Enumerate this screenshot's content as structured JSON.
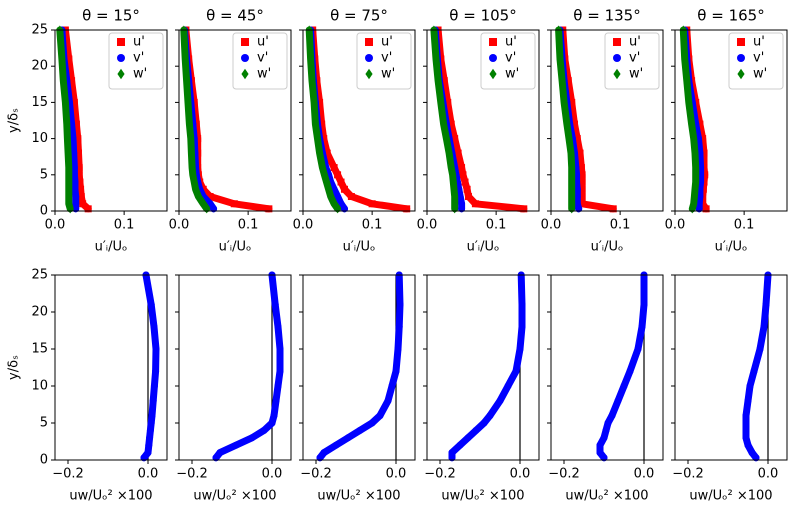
{
  "chart_data": [
    {
      "type": "scatter",
      "title": "θ = 15°",
      "xlabel": "u′ᵢ/Uₒ",
      "ylabel": "y/δₛ",
      "xlim": [
        0,
        0.162
      ],
      "ylim": [
        0,
        25
      ],
      "xticks": [
        {
          "value": 0,
          "label": "0.0"
        },
        {
          "value": 0.1,
          "label": "0.1"
        }
      ],
      "yticks": [
        0,
        5,
        10,
        15,
        20,
        25
      ],
      "y": [
        0.3,
        1,
        2,
        3,
        4,
        5,
        6,
        8,
        10,
        12,
        15,
        18,
        21,
        25
      ],
      "series": [
        {
          "name": "u'",
          "color": "#ff0000",
          "marker": "square",
          "values": [
            0.048,
            0.04,
            0.038,
            0.037,
            0.036,
            0.035,
            0.035,
            0.034,
            0.033,
            0.031,
            0.028,
            0.024,
            0.02,
            0.015
          ]
        },
        {
          "name": "v'",
          "color": "#0000ff",
          "marker": "circle",
          "values": [
            0.03,
            0.03,
            0.03,
            0.029,
            0.029,
            0.028,
            0.028,
            0.027,
            0.026,
            0.024,
            0.021,
            0.017,
            0.013,
            0.01
          ]
        },
        {
          "name": "w'",
          "color": "#008000",
          "marker": "diamond",
          "values": [
            0.022,
            0.02,
            0.02,
            0.02,
            0.02,
            0.02,
            0.02,
            0.019,
            0.018,
            0.017,
            0.015,
            0.012,
            0.01,
            0.007
          ]
        }
      ]
    },
    {
      "type": "scatter",
      "title": "θ = 45°",
      "xlabel": "u′ᵢ/Uₒ",
      "xlim": [
        0,
        0.162
      ],
      "ylim": [
        0,
        25
      ],
      "xticks": [
        {
          "value": 0,
          "label": "0.0"
        },
        {
          "value": 0.1,
          "label": "0.1"
        }
      ],
      "yticks": [
        0,
        5,
        10,
        15,
        20,
        25
      ],
      "y": [
        0.3,
        1,
        2,
        3,
        4,
        5,
        6,
        8,
        10,
        12,
        15,
        18,
        21,
        25
      ],
      "series": [
        {
          "name": "u'",
          "color": "#ff0000",
          "marker": "square",
          "values": [
            0.13,
            0.08,
            0.045,
            0.035,
            0.03,
            0.028,
            0.027,
            0.027,
            0.027,
            0.025,
            0.022,
            0.018,
            0.014,
            0.01
          ]
        },
        {
          "name": "v'",
          "color": "#0000ff",
          "marker": "circle",
          "values": [
            0.05,
            0.045,
            0.035,
            0.03,
            0.027,
            0.025,
            0.024,
            0.023,
            0.022,
            0.02,
            0.017,
            0.014,
            0.011,
            0.008
          ]
        },
        {
          "name": "w'",
          "color": "#008000",
          "marker": "diamond",
          "values": [
            0.04,
            0.035,
            0.028,
            0.024,
            0.022,
            0.02,
            0.019,
            0.018,
            0.017,
            0.015,
            0.013,
            0.011,
            0.009,
            0.007
          ]
        }
      ]
    },
    {
      "type": "scatter",
      "title": "θ = 75°",
      "xlabel": "u′ᵢ/Uₒ",
      "xlim": [
        0,
        0.162
      ],
      "ylim": [
        0,
        25
      ],
      "xticks": [
        {
          "value": 0,
          "label": "0.0"
        },
        {
          "value": 0.1,
          "label": "0.1"
        }
      ],
      "yticks": [
        0,
        5,
        10,
        15,
        20,
        25
      ],
      "y": [
        0.3,
        1,
        2,
        3,
        4,
        5,
        6,
        8,
        10,
        12,
        15,
        18,
        21,
        25
      ],
      "series": [
        {
          "name": "u'",
          "color": "#ff0000",
          "marker": "square",
          "values": [
            0.15,
            0.1,
            0.07,
            0.06,
            0.055,
            0.05,
            0.045,
            0.035,
            0.03,
            0.027,
            0.024,
            0.02,
            0.017,
            0.014
          ]
        },
        {
          "name": "v'",
          "color": "#0000ff",
          "marker": "circle",
          "values": [
            0.06,
            0.055,
            0.05,
            0.045,
            0.04,
            0.037,
            0.033,
            0.028,
            0.024,
            0.021,
            0.018,
            0.015,
            0.013,
            0.011
          ]
        },
        {
          "name": "w'",
          "color": "#008000",
          "marker": "diamond",
          "values": [
            0.05,
            0.045,
            0.04,
            0.037,
            0.034,
            0.031,
            0.028,
            0.024,
            0.021,
            0.018,
            0.016,
            0.013,
            0.011,
            0.009
          ]
        }
      ]
    },
    {
      "type": "scatter",
      "title": "θ = 105°",
      "xlabel": "u′ᵢ/Uₒ",
      "xlim": [
        0,
        0.162
      ],
      "ylim": [
        0,
        25
      ],
      "xticks": [
        {
          "value": 0,
          "label": "0.0"
        },
        {
          "value": 0.1,
          "label": "0.1"
        }
      ],
      "yticks": [
        0,
        5,
        10,
        15,
        20,
        25
      ],
      "y": [
        0.3,
        1,
        2,
        3,
        4,
        5,
        6,
        8,
        10,
        12,
        15,
        18,
        21,
        25
      ],
      "series": [
        {
          "name": "u'",
          "color": "#ff0000",
          "marker": "square",
          "values": [
            0.14,
            0.07,
            0.06,
            0.058,
            0.055,
            0.052,
            0.05,
            0.045,
            0.04,
            0.035,
            0.03,
            0.025,
            0.02,
            0.016
          ]
        },
        {
          "name": "v'",
          "color": "#0000ff",
          "marker": "circle",
          "values": [
            0.05,
            0.05,
            0.048,
            0.046,
            0.044,
            0.042,
            0.04,
            0.036,
            0.032,
            0.028,
            0.023,
            0.018,
            0.015,
            0.012
          ]
        },
        {
          "name": "w'",
          "color": "#008000",
          "marker": "diamond",
          "values": [
            0.04,
            0.04,
            0.04,
            0.039,
            0.038,
            0.037,
            0.035,
            0.032,
            0.028,
            0.024,
            0.02,
            0.016,
            0.013,
            0.01
          ]
        }
      ]
    },
    {
      "type": "scatter",
      "title": "θ = 135°",
      "xlabel": "u′ᵢ/Uₒ",
      "xlim": [
        0,
        0.162
      ],
      "ylim": [
        0,
        25
      ],
      "xticks": [
        {
          "value": 0,
          "label": "0.0"
        },
        {
          "value": 0.1,
          "label": "0.1"
        }
      ],
      "yticks": [
        0,
        5,
        10,
        15,
        20,
        25
      ],
      "y": [
        0.3,
        1,
        2,
        3,
        4,
        5,
        6,
        8,
        10,
        12,
        15,
        18,
        21,
        25
      ],
      "series": [
        {
          "name": "u'",
          "color": "#ff0000",
          "marker": "square",
          "values": [
            0.09,
            0.045,
            0.045,
            0.045,
            0.045,
            0.045,
            0.044,
            0.042,
            0.038,
            0.034,
            0.03,
            0.025,
            0.02,
            0.017
          ]
        },
        {
          "name": "v'",
          "color": "#0000ff",
          "marker": "circle",
          "values": [
            0.04,
            0.038,
            0.038,
            0.038,
            0.037,
            0.037,
            0.036,
            0.034,
            0.031,
            0.027,
            0.023,
            0.019,
            0.016,
            0.013
          ]
        },
        {
          "name": "w'",
          "color": "#008000",
          "marker": "diamond",
          "values": [
            0.03,
            0.03,
            0.03,
            0.03,
            0.03,
            0.03,
            0.03,
            0.029,
            0.026,
            0.023,
            0.019,
            0.016,
            0.013,
            0.011
          ]
        }
      ]
    },
    {
      "type": "scatter",
      "title": "θ = 165°",
      "xlabel": "u′ᵢ/Uₒ",
      "xlim": [
        0,
        0.162
      ],
      "ylim": [
        0,
        25
      ],
      "xticks": [
        {
          "value": 0,
          "label": "0.0"
        },
        {
          "value": 0.1,
          "label": "0.1"
        }
      ],
      "yticks": [
        0,
        5,
        10,
        15,
        20,
        25
      ],
      "y": [
        0.3,
        1,
        2,
        3,
        4,
        5,
        6,
        8,
        10,
        12,
        15,
        18,
        21,
        25
      ],
      "series": [
        {
          "name": "u'",
          "color": "#ff0000",
          "marker": "square",
          "values": [
            0.045,
            0.04,
            0.04,
            0.041,
            0.042,
            0.043,
            0.042,
            0.042,
            0.04,
            0.036,
            0.03,
            0.024,
            0.02,
            0.017
          ]
        },
        {
          "name": "v'",
          "color": "#0000ff",
          "marker": "circle",
          "values": [
            0.035,
            0.035,
            0.036,
            0.036,
            0.037,
            0.037,
            0.037,
            0.036,
            0.034,
            0.03,
            0.025,
            0.02,
            0.017,
            0.014
          ]
        },
        {
          "name": "w'",
          "color": "#008000",
          "marker": "diamond",
          "values": [
            0.025,
            0.027,
            0.028,
            0.029,
            0.03,
            0.03,
            0.03,
            0.029,
            0.027,
            0.024,
            0.02,
            0.017,
            0.014,
            0.012
          ]
        }
      ]
    },
    {
      "type": "scatter",
      "xlabel": "uw/Uₒ² ×100",
      "ylabel": "y/δₛ",
      "xlim": [
        -0.2325,
        0.0475
      ],
      "ylim": [
        0,
        25
      ],
      "xticks": [
        {
          "value": -0.2,
          "label": "−0.2"
        },
        {
          "value": 0,
          "label": "0.0"
        }
      ],
      "yticks": [
        0,
        5,
        10,
        15,
        20,
        25
      ],
      "y": [
        0.3,
        1,
        2,
        3,
        4,
        5,
        6,
        8,
        10,
        12,
        15,
        18,
        21,
        25
      ],
      "series": [
        {
          "color": "#0000ff",
          "marker": "circle",
          "values": [
            -0.01,
            0,
            0.002,
            0.004,
            0.006,
            0.008,
            0.01,
            0.013,
            0.016,
            0.019,
            0.02,
            0.015,
            0.008,
            -0.005
          ]
        }
      ]
    },
    {
      "type": "scatter",
      "xlabel": "uw/Uₒ² ×100",
      "xlim": [
        -0.2325,
        0.0475
      ],
      "ylim": [
        0,
        25
      ],
      "xticks": [
        {
          "value": -0.2,
          "label": "−0.2"
        },
        {
          "value": 0,
          "label": "0.0"
        }
      ],
      "yticks": [
        0,
        5,
        10,
        15,
        20,
        25
      ],
      "y": [
        0.3,
        1,
        2,
        3,
        4,
        5,
        6,
        8,
        10,
        12,
        15,
        18,
        21,
        25
      ],
      "series": [
        {
          "color": "#0000ff",
          "marker": "circle",
          "values": [
            -0.14,
            -0.13,
            -0.09,
            -0.05,
            -0.02,
            0.0,
            0.005,
            0.01,
            0.015,
            0.02,
            0.02,
            0.015,
            0.008,
            0.0
          ]
        }
      ]
    },
    {
      "type": "scatter",
      "xlabel": "uw/Uₒ² ×100",
      "xlim": [
        -0.2325,
        0.0475
      ],
      "ylim": [
        0,
        25
      ],
      "xticks": [
        {
          "value": -0.2,
          "label": "−0.2"
        },
        {
          "value": 0,
          "label": "0.0"
        }
      ],
      "yticks": [
        0,
        5,
        10,
        15,
        20,
        25
      ],
      "y": [
        0.3,
        1,
        2,
        3,
        4,
        5,
        6,
        8,
        10,
        12,
        15,
        18,
        21,
        25
      ],
      "series": [
        {
          "color": "#0000ff",
          "marker": "circle",
          "values": [
            -0.19,
            -0.18,
            -0.15,
            -0.12,
            -0.09,
            -0.06,
            -0.04,
            -0.02,
            -0.01,
            0.0,
            0.005,
            0.008,
            0.01,
            0.008
          ]
        }
      ]
    },
    {
      "type": "scatter",
      "xlabel": "uw/Uₒ² ×100",
      "xlim": [
        -0.2325,
        0.0475
      ],
      "ylim": [
        0,
        25
      ],
      "xticks": [
        {
          "value": -0.2,
          "label": "−0.2"
        },
        {
          "value": 0,
          "label": "0.0"
        }
      ],
      "yticks": [
        0,
        5,
        10,
        15,
        20,
        25
      ],
      "y": [
        0.3,
        1,
        2,
        3,
        4,
        5,
        6,
        8,
        10,
        12,
        15,
        18,
        21,
        25
      ],
      "series": [
        {
          "color": "#0000ff",
          "marker": "circle",
          "values": [
            -0.17,
            -0.17,
            -0.15,
            -0.13,
            -0.11,
            -0.09,
            -0.075,
            -0.05,
            -0.03,
            -0.01,
            0.0,
            0.005,
            0.005,
            0.003
          ]
        }
      ]
    },
    {
      "type": "scatter",
      "xlabel": "uw/Uₒ² ×100",
      "xlim": [
        -0.2325,
        0.0475
      ],
      "ylim": [
        0,
        25
      ],
      "xticks": [
        {
          "value": -0.2,
          "label": "−0.2"
        },
        {
          "value": 0,
          "label": "0.0"
        }
      ],
      "yticks": [
        0,
        5,
        10,
        15,
        20,
        25
      ],
      "y": [
        0.3,
        1,
        2,
        3,
        4,
        5,
        6,
        8,
        10,
        12,
        15,
        18,
        21,
        25
      ],
      "series": [
        {
          "color": "#0000ff",
          "marker": "circle",
          "values": [
            -0.1,
            -0.11,
            -0.11,
            -0.1,
            -0.095,
            -0.09,
            -0.08,
            -0.065,
            -0.05,
            -0.035,
            -0.015,
            -0.005,
            0.0,
            0.0
          ]
        }
      ]
    },
    {
      "type": "scatter",
      "xlabel": "uw/Uₒ² ×100",
      "xlim": [
        -0.2325,
        0.0475
      ],
      "ylim": [
        0,
        25
      ],
      "xticks": [
        {
          "value": -0.2,
          "label": "−0.2"
        },
        {
          "value": 0,
          "label": "0.0"
        }
      ],
      "yticks": [
        0,
        5,
        10,
        15,
        20,
        25
      ],
      "y": [
        0.3,
        1,
        2,
        3,
        4,
        5,
        6,
        8,
        10,
        12,
        15,
        18,
        21,
        25
      ],
      "series": [
        {
          "color": "#0000ff",
          "marker": "circle",
          "values": [
            -0.03,
            -0.04,
            -0.05,
            -0.055,
            -0.055,
            -0.055,
            -0.055,
            -0.05,
            -0.045,
            -0.035,
            -0.02,
            -0.01,
            -0.005,
            0.0
          ]
        }
      ]
    }
  ]
}
